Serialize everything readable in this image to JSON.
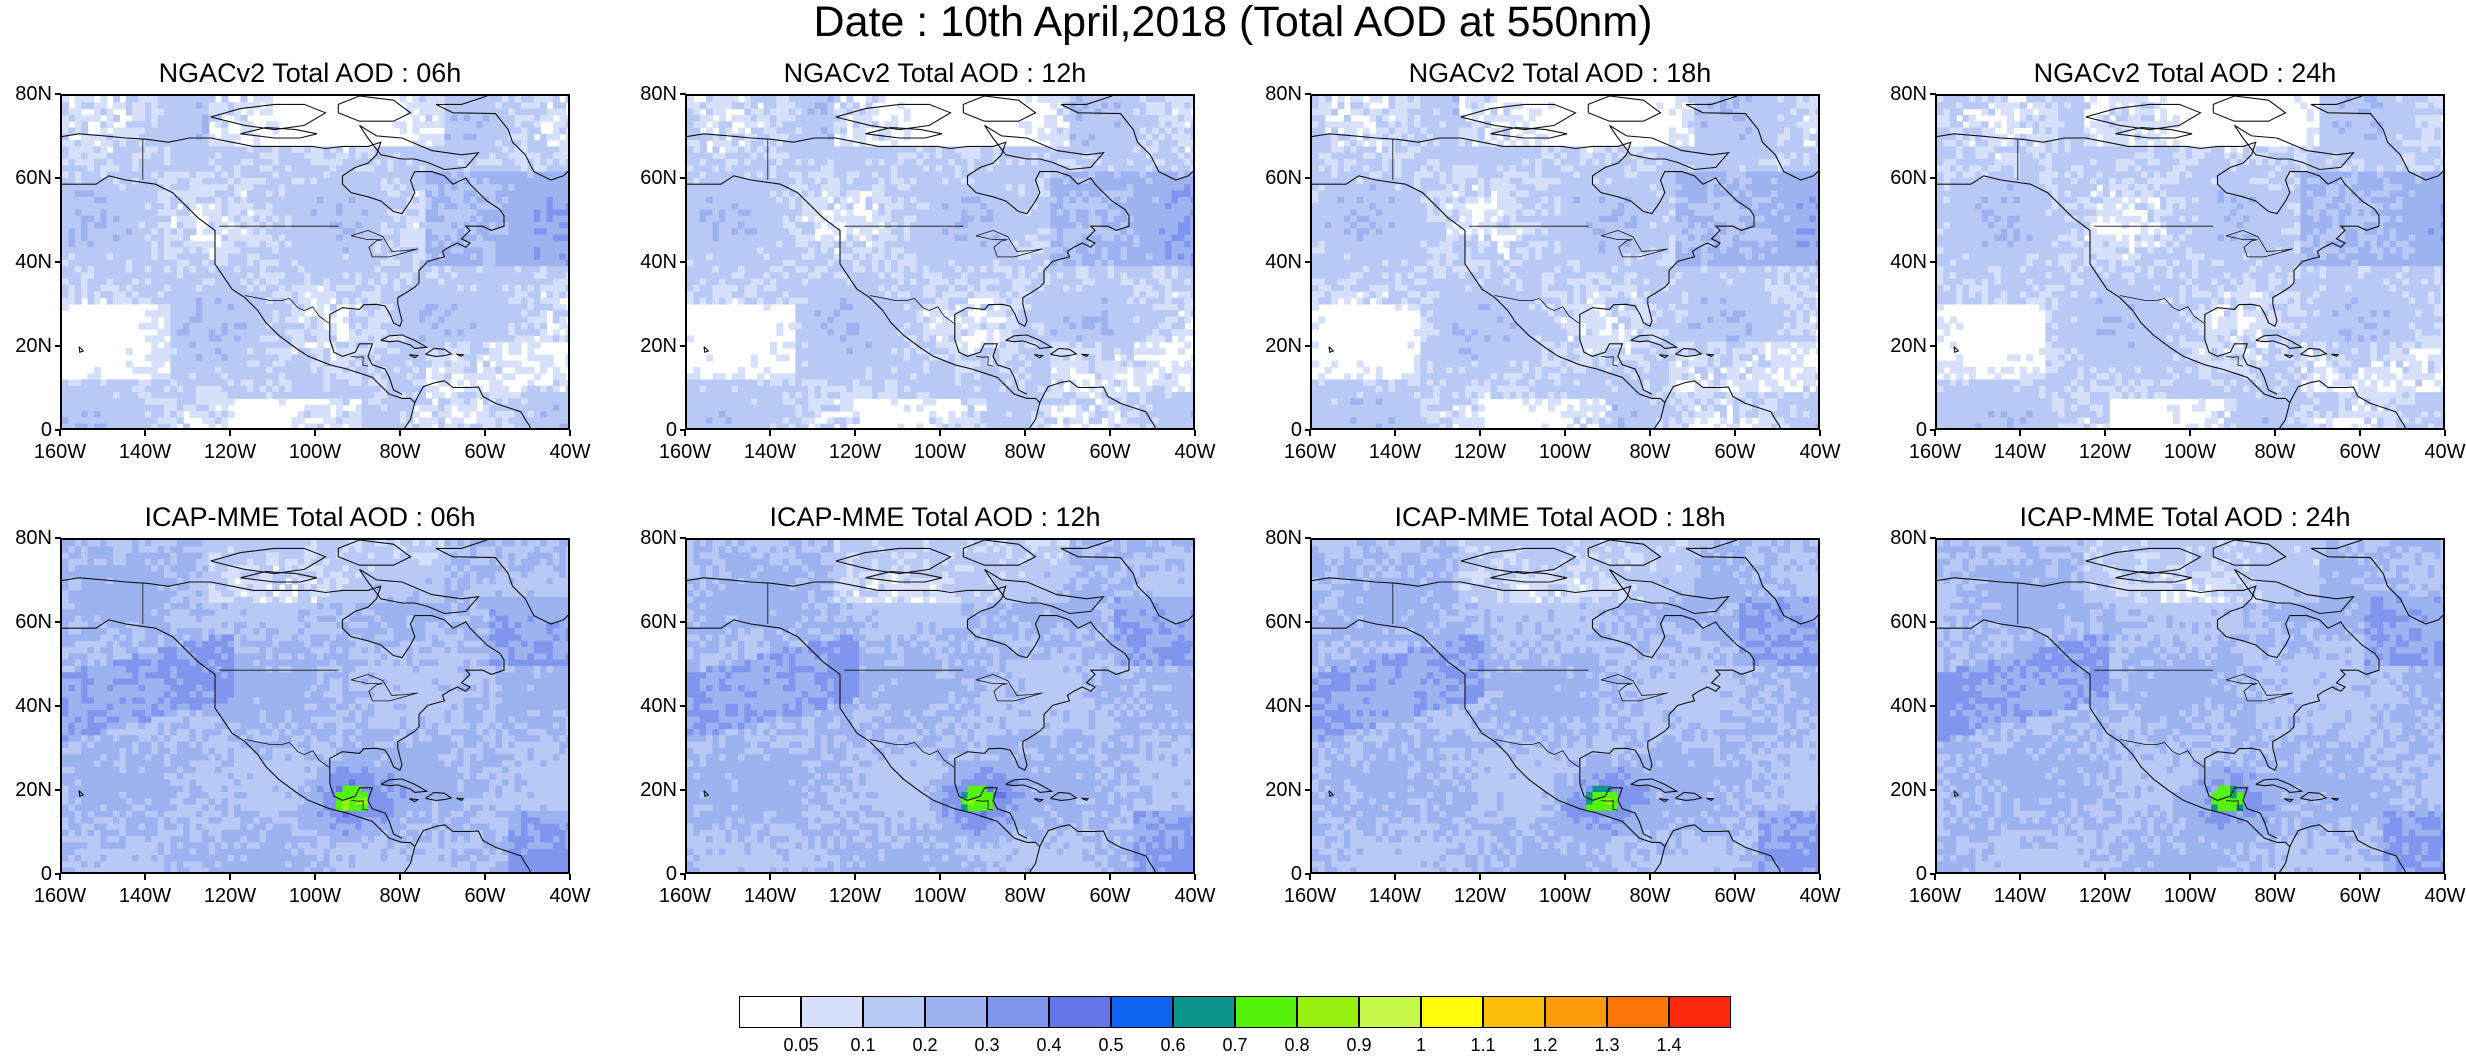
{
  "main_title": "Date : 10th April,2018 (Total AOD at 550nm)",
  "panels": [
    {
      "title": "NGACv2 Total AOD : 06h",
      "model": "NGAC",
      "hour": 6
    },
    {
      "title": "NGACv2 Total AOD : 12h",
      "model": "NGAC",
      "hour": 12
    },
    {
      "title": "NGACv2 Total AOD : 18h",
      "model": "NGAC",
      "hour": 18
    },
    {
      "title": "NGACv2 Total AOD : 24h",
      "model": "NGAC",
      "hour": 24
    },
    {
      "title": "ICAP-MME Total AOD : 06h",
      "model": "ICAP",
      "hour": 6
    },
    {
      "title": "ICAP-MME Total AOD : 12h",
      "model": "ICAP",
      "hour": 12
    },
    {
      "title": "ICAP-MME Total AOD : 18h",
      "model": "ICAP",
      "hour": 18
    },
    {
      "title": "ICAP-MME Total AOD : 24h",
      "model": "ICAP",
      "hour": 24
    }
  ],
  "y_ticks": [
    "80N",
    "60N",
    "40N",
    "20N",
    "0"
  ],
  "x_ticks": [
    "160W",
    "140W",
    "120W",
    "100W",
    "80W",
    "60W",
    "40W"
  ],
  "colorbar": {
    "colors": [
      "#ffffff",
      "#d6e0fb",
      "#b9c9f6",
      "#9db3f1",
      "#8096ee",
      "#6475ea",
      "#0f61f2",
      "#0a948c",
      "#55f20a",
      "#95f210",
      "#c6f84a",
      "#fefe0a",
      "#fcbe0c",
      "#fc9c0a",
      "#fc760a",
      "#fc2a0c"
    ],
    "labels": [
      "0.05",
      "0.1",
      "0.2",
      "0.3",
      "0.4",
      "0.5",
      "0.6",
      "0.7",
      "0.8",
      "0.9",
      "1",
      "1.1",
      "1.2",
      "1.3",
      "1.4"
    ]
  }
}
